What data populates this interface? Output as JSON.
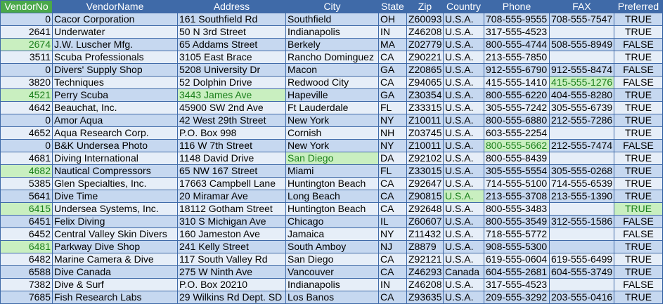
{
  "columns": [
    "VendorNo",
    "VendorName",
    "Address",
    "City",
    "State",
    "Zip",
    "Country",
    "Phone",
    "FAX",
    "Preferred"
  ],
  "rows": [
    {
      "vendorno": "0",
      "name": "Cacor Corporation",
      "address": "161 Southfield Rd",
      "city": "Southfield",
      "state": "OH",
      "zip": "Z60093",
      "country": "U.S.A.",
      "phone": "708-555-9555",
      "fax": "708-555-7547",
      "preferred": "TRUE"
    },
    {
      "vendorno": "2641",
      "name": "Underwater",
      "address": "50 N 3rd Street",
      "city": "Indianapolis",
      "state": "IN",
      "zip": "Z46208",
      "country": "U.S.A.",
      "phone": "317-555-4523",
      "fax": "",
      "preferred": "TRUE"
    },
    {
      "vendorno": "2674",
      "name": "J.W.  Luscher Mfg.",
      "address": "65 Addams Street",
      "city": "Berkely",
      "state": "MA",
      "zip": "Z02779",
      "country": "U.S.A.",
      "phone": "800-555-4744",
      "fax": "508-555-8949",
      "preferred": "FALSE"
    },
    {
      "vendorno": "3511",
      "name": "Scuba Professionals",
      "address": "3105 East Brace",
      "city": "Rancho Dominguez",
      "state": "CA",
      "zip": "Z90221",
      "country": "U.S.A.",
      "phone": "213-555-7850",
      "fax": "",
      "preferred": "TRUE"
    },
    {
      "vendorno": "0",
      "name": "Divers'  Supply Shop",
      "address": "5208 University Dr",
      "city": "Macon",
      "state": "GA",
      "zip": "Z20865",
      "country": "U.S.A.",
      "phone": "912-555-6790",
      "fax": "912-555-8474",
      "preferred": "FALSE"
    },
    {
      "vendorno": "3820",
      "name": "Techniques",
      "address": "52 Dolphin Drive",
      "city": "Redwood City",
      "state": "CA",
      "zip": "Z94065",
      "country": "U.S.A.",
      "phone": "415-555-1410",
      "fax": "415-555-1276",
      "preferred": "FALSE"
    },
    {
      "vendorno": "4521",
      "name": "Perry Scuba",
      "address": "3443 James Ave",
      "city": "Hapeville",
      "state": "GA",
      "zip": "Z30354",
      "country": "U.S.A.",
      "phone": "800-555-6220",
      "fax": "404-555-8280",
      "preferred": "TRUE"
    },
    {
      "vendorno": "4642",
      "name": "Beauchat, Inc.",
      "address": "45900 SW 2nd Ave",
      "city": "Ft Lauderdale",
      "state": "FL",
      "zip": "Z33315",
      "country": "U.S.A.",
      "phone": "305-555-7242",
      "fax": "305-555-6739",
      "preferred": "TRUE"
    },
    {
      "vendorno": "0",
      "name": "Amor Aqua",
      "address": "42 West 29th Street",
      "city": "New York",
      "state": "NY",
      "zip": "Z10011",
      "country": "U.S.A.",
      "phone": "800-555-6880",
      "fax": "212-555-7286",
      "preferred": "TRUE"
    },
    {
      "vendorno": "4652",
      "name": "Aqua Research Corp.",
      "address": "P.O. Box 998",
      "city": "Cornish",
      "state": "NH",
      "zip": "Z03745",
      "country": "U.S.A.",
      "phone": "603-555-2254",
      "fax": "",
      "preferred": "TRUE"
    },
    {
      "vendorno": "0",
      "name": "B&K Undersea Photo",
      "address": "116 W 7th Street",
      "city": "New York",
      "state": "NY",
      "zip": "Z10011",
      "country": "U.S.A.",
      "phone": "800-555-5662",
      "fax": "212-555-7474",
      "preferred": "FALSE"
    },
    {
      "vendorno": "4681",
      "name": "Diving International",
      "address": "1148 David Drive",
      "city": "San Diego",
      "state": "DA",
      "zip": "Z92102",
      "country": "U.S.A.",
      "phone": "800-555-8439",
      "fax": "",
      "preferred": "TRUE"
    },
    {
      "vendorno": "4682",
      "name": "Nautical Compressors",
      "address": "65 NW 167 Street",
      "city": "Miami",
      "state": "FL",
      "zip": "Z33015",
      "country": "U.S.A.",
      "phone": "305-555-5554",
      "fax": "305-555-0268",
      "preferred": "TRUE"
    },
    {
      "vendorno": "5385",
      "name": "Glen Specialties, Inc.",
      "address": "17663 Campbell Lane",
      "city": "Huntington Beach",
      "state": "CA",
      "zip": "Z92647",
      "country": "U.S.A.",
      "phone": "714-555-5100",
      "fax": "714-555-6539",
      "preferred": "TRUE"
    },
    {
      "vendorno": "5641",
      "name": "Dive Time",
      "address": "20 Miramar Ave",
      "city": "Long Beach",
      "state": "CA",
      "zip": "Z90815",
      "country": "U.S.A.",
      "phone": "213-555-3708",
      "fax": "213-555-1390",
      "preferred": "TRUE"
    },
    {
      "vendorno": "6415",
      "name": "Undersea Systems, Inc.",
      "address": "18112 Gotham Street",
      "city": "Huntington Beach",
      "state": "CA",
      "zip": "Z92648",
      "country": "U.S.A.",
      "phone": "800-555-3483",
      "fax": "",
      "preferred": "TRUE"
    },
    {
      "vendorno": "6451",
      "name": "Felix Diving",
      "address": "310 S Michigan Ave",
      "city": "Chicago",
      "state": "IL",
      "zip": "Z60607",
      "country": "U.S.A.",
      "phone": "800-555-3549",
      "fax": "312-555-1586",
      "preferred": "FALSE"
    },
    {
      "vendorno": "6452",
      "name": "Central Valley Skin Divers",
      "address": "160 Jameston Ave",
      "city": "Jamaica",
      "state": "NY",
      "zip": "Z11432",
      "country": "U.S.A.",
      "phone": "718-555-5772",
      "fax": "",
      "preferred": "FALSE"
    },
    {
      "vendorno": "6481",
      "name": "Parkway Dive Shop",
      "address": "241 Kelly Street",
      "city": "South Amboy",
      "state": "NJ",
      "zip": "Z8879",
      "country": "U.S.A.",
      "phone": "908-555-5300",
      "fax": "",
      "preferred": "TRUE"
    },
    {
      "vendorno": "6482",
      "name": "Marine Camera & Dive",
      "address": "117 South Valley Rd",
      "city": "San Diego",
      "state": "CA",
      "zip": "Z92121",
      "country": "U.S.A.",
      "phone": "619-555-0604",
      "fax": "619-555-6499",
      "preferred": "TRUE"
    },
    {
      "vendorno": "6588",
      "name": "Dive Canada",
      "address": "275 W Ninth Ave",
      "city": "Vancouver",
      "state": "CA",
      "zip": "Z46293",
      "country": "Canada",
      "phone": "604-555-2681",
      "fax": "604-555-3749",
      "preferred": "TRUE"
    },
    {
      "vendorno": "7382",
      "name": "Dive & Surf",
      "address": "P.O. Box 20210",
      "city": "Indianapolis",
      "state": "IN",
      "zip": "Z46208",
      "country": "U.S.A.",
      "phone": "317-555-4523",
      "fax": "",
      "preferred": "FALSE"
    },
    {
      "vendorno": "7685",
      "name": "Fish Research Labs",
      "address": "29 Wilkins Rd Dept. SD",
      "city": "Los Banos",
      "state": "CA",
      "zip": "Z93635",
      "country": "U.S.A.",
      "phone": "209-555-3292",
      "fax": "203-555-0416",
      "preferred": "TRUE"
    }
  ],
  "highlight_color": "#c9efc0",
  "highlight_text_color": "#1a7f1a",
  "header_color": "#3f6aa8",
  "header_selected_color": "#4aa84a",
  "selected_header": "VendorNo",
  "highlighted_cells": [
    {
      "row": 2,
      "field": "vendorno"
    },
    {
      "row": 5,
      "field": "fax"
    },
    {
      "row": 6,
      "field": "vendorno"
    },
    {
      "row": 6,
      "field": "address"
    },
    {
      "row": 10,
      "field": "phone"
    },
    {
      "row": 11,
      "field": "city"
    },
    {
      "row": 12,
      "field": "vendorno"
    },
    {
      "row": 14,
      "field": "country"
    },
    {
      "row": 15,
      "field": "vendorno"
    },
    {
      "row": 15,
      "field": "preferred"
    },
    {
      "row": 18,
      "field": "vendorno"
    }
  ]
}
